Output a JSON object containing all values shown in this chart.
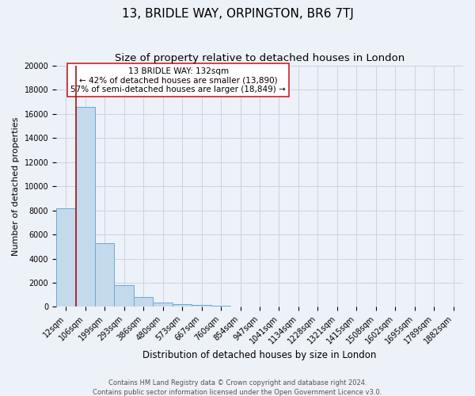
{
  "title": "13, BRIDLE WAY, ORPINGTON, BR6 7TJ",
  "subtitle": "Size of property relative to detached houses in London",
  "xlabel": "Distribution of detached houses by size in London",
  "ylabel": "Number of detached properties",
  "bar_labels": [
    "12sqm",
    "106sqm",
    "199sqm",
    "293sqm",
    "386sqm",
    "480sqm",
    "573sqm",
    "667sqm",
    "760sqm",
    "854sqm",
    "947sqm",
    "1041sqm",
    "1134sqm",
    "1228sqm",
    "1321sqm",
    "1415sqm",
    "1508sqm",
    "1602sqm",
    "1695sqm",
    "1789sqm",
    "1882sqm"
  ],
  "bar_values": [
    8200,
    16600,
    5300,
    1800,
    800,
    350,
    200,
    150,
    100,
    0,
    0,
    0,
    0,
    0,
    0,
    0,
    0,
    0,
    0,
    0,
    0
  ],
  "bar_color": "#c5d9ec",
  "bar_edge_color": "#6aabd2",
  "grid_color": "#c8d4e4",
  "background_color": "#edf1f8",
  "ylim": [
    0,
    20000
  ],
  "yticks": [
    0,
    2000,
    4000,
    6000,
    8000,
    10000,
    12000,
    14000,
    16000,
    18000,
    20000
  ],
  "property_label": "13 BRIDLE WAY: 132sqm",
  "annotation_line1": "← 42% of detached houses are smaller (13,890)",
  "annotation_line2": "57% of semi-detached houses are larger (18,849) →",
  "vline_color": "#aa1111",
  "annotation_box_edge": "#cc2222",
  "footer1": "Contains HM Land Registry data © Crown copyright and database right 2024.",
  "footer2": "Contains public sector information licensed under the Open Government Licence v3.0.",
  "title_fontsize": 11,
  "subtitle_fontsize": 9.5,
  "xlabel_fontsize": 8.5,
  "ylabel_fontsize": 8,
  "annotation_fontsize": 7.5,
  "tick_fontsize": 7,
  "footer_fontsize": 6,
  "vline_x_bin": 1
}
